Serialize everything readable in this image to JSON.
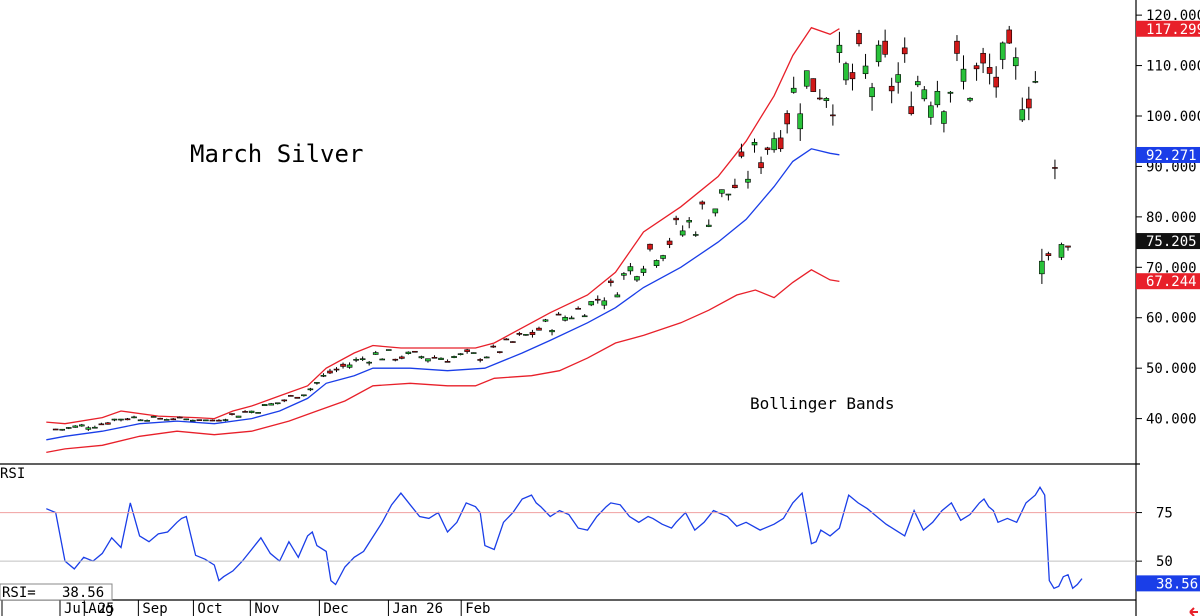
{
  "chart_data": {
    "type": "candlestick",
    "title": "March Silver",
    "annotation": "Bollinger Bands",
    "price_axis": {
      "ylim": [
        31,
        123
      ],
      "ticks": [
        "120.000",
        "110.000",
        "100.000",
        "90.000",
        "80.000",
        "70.000",
        "60.000",
        "50.000",
        "40.000"
      ],
      "tick_values": [
        120,
        110,
        100,
        90,
        80,
        70,
        60,
        50,
        40
      ]
    },
    "markers": [
      {
        "label": "117.299",
        "value": 117.299,
        "color": "#e8202a"
      },
      {
        "label": "92.271",
        "value": 92.271,
        "color": "#1a3ee8"
      },
      {
        "label": "75.205",
        "value": 75.205,
        "color": "#111111"
      },
      {
        "label": "67.244",
        "value": 67.244,
        "color": "#e8202a"
      }
    ],
    "months": [
      "Jul 25",
      "Aug",
      "Sep",
      "Oct",
      "Nov",
      "Dec",
      "Jan 26",
      "Feb"
    ],
    "month_days": [
      0,
      26,
      84,
      143,
      204,
      278,
      352,
      430
    ],
    "rsi": {
      "label": "RSI",
      "readout_label": "RSI=",
      "readout_value": "38.56",
      "ticks": [
        "75",
        "50"
      ],
      "tick_values": [
        75,
        50
      ],
      "marker": {
        "label": "38.56",
        "value": 38.56,
        "color": "#1a3ee8"
      },
      "ylim": [
        30,
        100
      ]
    },
    "bands_upper": [
      [
        -20,
        39.3
      ],
      [
        0,
        39.0
      ],
      [
        40,
        40.2
      ],
      [
        60,
        41.5
      ],
      [
        100,
        40.5
      ],
      [
        140,
        40.2
      ],
      [
        160,
        40.0
      ],
      [
        180,
        41.5
      ],
      [
        200,
        42.5
      ],
      [
        230,
        44.5
      ],
      [
        260,
        46.5
      ],
      [
        280,
        50
      ],
      [
        310,
        53
      ],
      [
        330,
        54.5
      ],
      [
        360,
        54
      ],
      [
        400,
        54
      ],
      [
        440,
        54
      ],
      [
        460,
        55
      ],
      [
        500,
        59
      ],
      [
        520,
        61
      ],
      [
        560,
        64.5
      ],
      [
        590,
        69
      ],
      [
        620,
        77
      ],
      [
        660,
        82
      ],
      [
        700,
        88
      ],
      [
        730,
        95
      ],
      [
        760,
        104
      ],
      [
        780,
        112
      ],
      [
        800,
        117.5
      ],
      [
        820,
        116.2
      ],
      [
        830,
        117.3
      ]
    ],
    "bands_middle": [
      [
        -20,
        35.8
      ],
      [
        0,
        36.5
      ],
      [
        40,
        37.5
      ],
      [
        80,
        39
      ],
      [
        120,
        39.5
      ],
      [
        160,
        39
      ],
      [
        200,
        40
      ],
      [
        230,
        41.5
      ],
      [
        260,
        44
      ],
      [
        280,
        47
      ],
      [
        310,
        48.5
      ],
      [
        330,
        50
      ],
      [
        370,
        50
      ],
      [
        410,
        49.5
      ],
      [
        450,
        50
      ],
      [
        490,
        53
      ],
      [
        520,
        55.5
      ],
      [
        560,
        59
      ],
      [
        590,
        62
      ],
      [
        620,
        66
      ],
      [
        660,
        70
      ],
      [
        700,
        75
      ],
      [
        730,
        79.5
      ],
      [
        760,
        86
      ],
      [
        780,
        91
      ],
      [
        800,
        93.5
      ],
      [
        820,
        92.6
      ],
      [
        830,
        92.3
      ]
    ],
    "bands_lower": [
      [
        -20,
        33.3
      ],
      [
        0,
        34.0
      ],
      [
        40,
        34.7
      ],
      [
        80,
        36.5
      ],
      [
        120,
        37.5
      ],
      [
        160,
        36.8
      ],
      [
        200,
        37.5
      ],
      [
        240,
        39.5
      ],
      [
        270,
        41.5
      ],
      [
        300,
        43.5
      ],
      [
        330,
        46.5
      ],
      [
        370,
        47
      ],
      [
        410,
        46.5
      ],
      [
        440,
        46.5
      ],
      [
        460,
        48
      ],
      [
        500,
        48.5
      ],
      [
        530,
        49.5
      ],
      [
        560,
        52
      ],
      [
        590,
        55
      ],
      [
        620,
        56.5
      ],
      [
        660,
        59
      ],
      [
        690,
        61.5
      ],
      [
        720,
        64.5
      ],
      [
        740,
        65.5
      ],
      [
        760,
        64
      ],
      [
        780,
        67
      ],
      [
        800,
        69.5
      ],
      [
        820,
        67.5
      ],
      [
        830,
        67.2
      ]
    ],
    "rsi_values": [
      [
        -20,
        77
      ],
      [
        -10,
        75
      ],
      [
        0,
        50
      ],
      [
        10,
        46
      ],
      [
        20,
        52
      ],
      [
        30,
        50
      ],
      [
        40,
        54
      ],
      [
        50,
        62
      ],
      [
        60,
        57
      ],
      [
        70,
        80
      ],
      [
        80,
        63
      ],
      [
        90,
        60
      ],
      [
        100,
        64
      ],
      [
        110,
        65
      ],
      [
        120,
        70
      ],
      [
        125,
        72
      ],
      [
        130,
        73
      ],
      [
        140,
        53
      ],
      [
        150,
        51
      ],
      [
        160,
        48
      ],
      [
        165,
        40
      ],
      [
        170,
        42
      ],
      [
        180,
        45
      ],
      [
        190,
        50
      ],
      [
        200,
        56
      ],
      [
        210,
        62
      ],
      [
        220,
        54
      ],
      [
        230,
        50
      ],
      [
        240,
        60
      ],
      [
        250,
        52
      ],
      [
        260,
        63
      ],
      [
        265,
        65
      ],
      [
        270,
        58
      ],
      [
        280,
        55
      ],
      [
        285,
        40
      ],
      [
        290,
        38
      ],
      [
        300,
        47
      ],
      [
        310,
        52
      ],
      [
        320,
        55
      ],
      [
        340,
        70
      ],
      [
        350,
        79
      ],
      [
        360,
        85
      ],
      [
        370,
        79
      ],
      [
        380,
        73
      ],
      [
        390,
        72
      ],
      [
        400,
        75
      ],
      [
        410,
        65
      ],
      [
        420,
        70
      ],
      [
        430,
        80
      ],
      [
        440,
        78
      ],
      [
        445,
        75
      ],
      [
        450,
        58
      ],
      [
        460,
        56
      ],
      [
        470,
        70
      ],
      [
        480,
        75
      ],
      [
        490,
        82
      ],
      [
        500,
        84
      ],
      [
        505,
        80
      ],
      [
        510,
        78
      ],
      [
        520,
        73
      ],
      [
        530,
        76
      ],
      [
        540,
        74
      ],
      [
        550,
        67
      ],
      [
        560,
        66
      ],
      [
        570,
        73
      ],
      [
        580,
        78
      ],
      [
        585,
        80
      ],
      [
        595,
        79
      ],
      [
        605,
        73
      ],
      [
        615,
        70
      ],
      [
        625,
        73
      ],
      [
        630,
        72
      ],
      [
        640,
        69
      ],
      [
        650,
        67
      ],
      [
        655,
        70
      ],
      [
        665,
        75
      ],
      [
        675,
        66
      ],
      [
        685,
        70
      ],
      [
        695,
        76
      ],
      [
        710,
        73
      ],
      [
        720,
        68
      ],
      [
        730,
        70
      ],
      [
        745,
        66
      ],
      [
        760,
        69
      ],
      [
        770,
        72
      ],
      [
        780,
        80
      ],
      [
        790,
        85
      ],
      [
        795,
        72
      ],
      [
        800,
        59
      ],
      [
        805,
        60
      ],
      [
        810,
        66
      ],
      [
        820,
        63
      ],
      [
        830,
        67
      ],
      [
        840,
        84
      ],
      [
        850,
        80
      ],
      [
        860,
        77
      ],
      [
        870,
        73
      ],
      [
        880,
        69
      ],
      [
        890,
        66
      ],
      [
        900,
        63
      ],
      [
        910,
        76
      ],
      [
        920,
        66
      ],
      [
        930,
        70
      ],
      [
        940,
        76
      ],
      [
        950,
        80
      ],
      [
        960,
        71
      ],
      [
        970,
        74
      ],
      [
        980,
        80
      ],
      [
        985,
        82
      ],
      [
        990,
        78
      ],
      [
        995,
        76
      ],
      [
        1000,
        70
      ],
      [
        1010,
        72
      ],
      [
        1020,
        70
      ],
      [
        1030,
        80
      ],
      [
        1040,
        84
      ],
      [
        1045,
        88
      ],
      [
        1050,
        84
      ],
      [
        1055,
        40
      ],
      [
        1060,
        36
      ],
      [
        1065,
        37
      ],
      [
        1070,
        42
      ],
      [
        1075,
        43
      ],
      [
        1080,
        36
      ],
      [
        1085,
        38
      ],
      [
        1090,
        41
      ]
    ],
    "candles": []
  }
}
